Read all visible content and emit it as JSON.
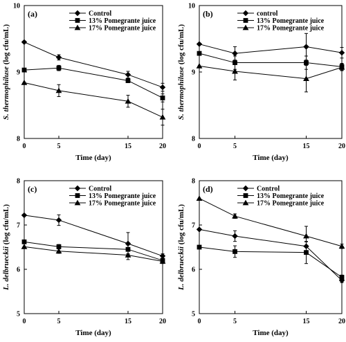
{
  "chart_data": [
    {
      "type": "line",
      "panel_label": "(a)",
      "ylabel_italic": "S. thermophiluse",
      "ylabel_rest": " (log cfu/mL)",
      "xlabel": "Time (day)",
      "x": [
        0,
        5,
        15,
        20
      ],
      "x_ticks": [
        "0",
        "5",
        "15",
        "20"
      ],
      "y_ticks": [
        "8",
        "9",
        "10"
      ],
      "ylim": [
        8,
        10
      ],
      "legend_position": "top-left",
      "series": [
        {
          "name": "Control",
          "marker": "diamond",
          "values": [
            9.45,
            9.22,
            8.96,
            8.77
          ],
          "errors": [
            0,
            0.04,
            0.05,
            0.06
          ]
        },
        {
          "name": "13% Pomegrante juice",
          "marker": "square",
          "values": [
            9.03,
            9.06,
            8.87,
            8.61
          ],
          "errors": [
            0,
            0.04,
            0.03,
            0.06
          ]
        },
        {
          "name": "17% Pomegrante juice",
          "marker": "triangle",
          "values": [
            8.84,
            8.72,
            8.56,
            8.32
          ],
          "errors": [
            0,
            0.09,
            0.09,
            0.12
          ]
        }
      ]
    },
    {
      "type": "line",
      "panel_label": "(b)",
      "ylabel_italic": "S. thermophiluse",
      "ylabel_rest": " (log cfu/mL)",
      "xlabel": "Time (day)",
      "x": [
        0,
        5,
        15,
        20
      ],
      "x_ticks": [
        "0",
        "5",
        "15",
        "20"
      ],
      "y_ticks": [
        "8",
        "9",
        "10"
      ],
      "ylim": [
        8,
        10
      ],
      "legend_position": "top-right",
      "series": [
        {
          "name": "control",
          "marker": "diamond",
          "values": [
            9.42,
            9.28,
            9.38,
            9.29
          ],
          "errors": [
            0,
            0.1,
            0.2,
            0.08
          ]
        },
        {
          "name": "13% Pomegrante juice",
          "marker": "square",
          "values": [
            9.28,
            9.14,
            9.14,
            9.08
          ],
          "errors": [
            0,
            0.1,
            0.1,
            0.05
          ]
        },
        {
          "name": "17% Pomegrante juice",
          "marker": "triangle",
          "values": [
            9.09,
            9.01,
            8.9,
            9.07
          ],
          "errors": [
            0,
            0.13,
            0.2,
            0.05
          ]
        }
      ]
    },
    {
      "type": "line",
      "panel_label": "(c)",
      "ylabel_italic": "L. delbrueckii",
      "ylabel_rest": " (log cfu/mL)",
      "xlabel": "Time (day)",
      "x": [
        0,
        5,
        15,
        20
      ],
      "x_ticks": [
        "0",
        "5",
        "15",
        "20"
      ],
      "y_ticks": [
        "5",
        "6",
        "7",
        "8"
      ],
      "ylim": [
        5,
        8
      ],
      "legend_position": "top-right",
      "series": [
        {
          "name": "Control",
          "marker": "diamond",
          "values": [
            7.22,
            7.11,
            6.58,
            6.3
          ],
          "errors": [
            0,
            0.12,
            0.25,
            0.05
          ]
        },
        {
          "name": "13% Pomegrante juice",
          "marker": "square",
          "values": [
            6.62,
            6.51,
            6.45,
            6.2
          ],
          "errors": [
            0,
            0.05,
            0.1,
            0.05
          ]
        },
        {
          "name": "17% Pomegrante juice",
          "marker": "triangle",
          "values": [
            6.51,
            6.41,
            6.32,
            6.18
          ],
          "errors": [
            0,
            0.05,
            0.1,
            0.05
          ]
        }
      ]
    },
    {
      "type": "line",
      "panel_label": "(d)",
      "ylabel_italic": "L. delbrueckii",
      "ylabel_rest": " (log cfu/mL)",
      "xlabel": "Time (day)",
      "x": [
        0,
        5,
        15,
        20
      ],
      "x_ticks": [
        "0",
        "5",
        "15",
        "20"
      ],
      "y_ticks": [
        "5",
        "6",
        "7",
        "8"
      ],
      "ylim": [
        5,
        8
      ],
      "legend_position": "top-right",
      "series": [
        {
          "name": "Control",
          "marker": "diamond",
          "values": [
            6.9,
            6.75,
            6.52,
            5.75
          ],
          "errors": [
            0,
            0.12,
            0.1,
            0.05
          ]
        },
        {
          "name": "13% Pomegrante juice",
          "marker": "square",
          "values": [
            6.5,
            6.4,
            6.38,
            5.82
          ],
          "errors": [
            0,
            0.13,
            0.25,
            0.05
          ]
        },
        {
          "name": "17% Pomegrante juice",
          "marker": "triangle",
          "values": [
            7.6,
            7.2,
            6.75,
            6.52
          ],
          "errors": [
            0,
            0.05,
            0.22,
            0.05
          ]
        }
      ]
    }
  ]
}
